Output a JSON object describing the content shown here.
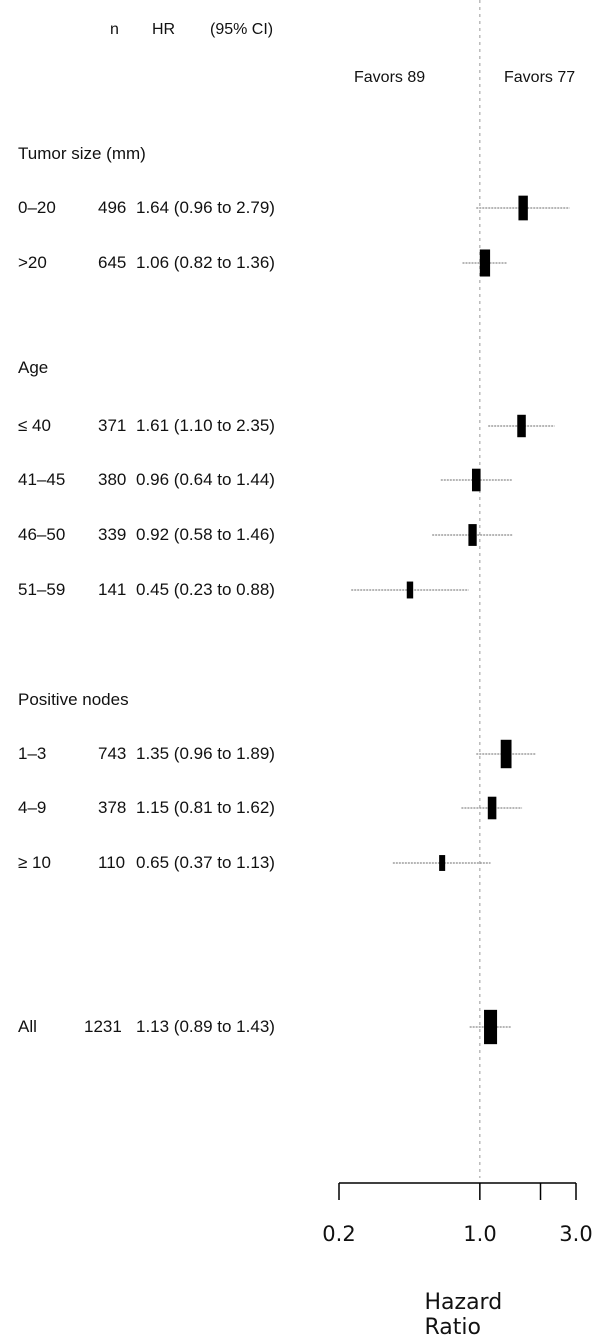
{
  "chart_data": {
    "type": "forest",
    "columns": {
      "n": "n",
      "hr": "HR",
      "ci": "(95% CI)"
    },
    "favors_left": "Favors 89",
    "favors_right": "Favors 77",
    "x_scale": "log",
    "xlim": [
      0.2,
      3.0
    ],
    "x_ticks": [
      {
        "value": 0.2,
        "label": "0.2"
      },
      {
        "value": 1.0,
        "label": "1.0"
      },
      {
        "value": 2.0,
        "label": ""
      },
      {
        "value": 3.0,
        "label": "3.0"
      }
    ],
    "xlabel": "Hazard Ratio",
    "reference_line": 1.0,
    "sections": [
      {
        "title": "Tumor size (mm)",
        "rows": [
          {
            "label": "0–20",
            "n": "496",
            "hr": 1.64,
            "lo": 0.96,
            "hi": 2.79,
            "ci_text": "1.64 (0.96 to 2.79)"
          },
          {
            "label": ">20",
            "n": "645",
            "hr": 1.06,
            "lo": 0.82,
            "hi": 1.36,
            "ci_text": "1.06 (0.82 to 1.36)"
          }
        ]
      },
      {
        "title": "Age",
        "rows": [
          {
            "label": "≤ 40",
            "n": "371",
            "hr": 1.61,
            "lo": 1.1,
            "hi": 2.35,
            "ci_text": "1.61 (1.10 to 2.35)"
          },
          {
            "label": "41–45",
            "n": "380",
            "hr": 0.96,
            "lo": 0.64,
            "hi": 1.44,
            "ci_text": "0.96 (0.64 to 1.44)"
          },
          {
            "label": "46–50",
            "n": "339",
            "hr": 0.92,
            "lo": 0.58,
            "hi": 1.46,
            "ci_text": "0.92 (0.58 to 1.46)"
          },
          {
            "label": "51–59",
            "n": "141",
            "hr": 0.45,
            "lo": 0.23,
            "hi": 0.88,
            "ci_text": "0.45 (0.23 to 0.88)"
          }
        ]
      },
      {
        "title": "Positive nodes",
        "rows": [
          {
            "label": "1–3",
            "n": "743",
            "hr": 1.35,
            "lo": 0.96,
            "hi": 1.89,
            "ci_text": "1.35 (0.96 to 1.89)"
          },
          {
            "label": "4–9",
            "n": "378",
            "hr": 1.15,
            "lo": 0.81,
            "hi": 1.62,
            "ci_text": "1.15 (0.81 to 1.62)"
          },
          {
            "label": "≥ 10",
            "n": "110",
            "hr": 0.65,
            "lo": 0.37,
            "hi": 1.13,
            "ci_text": "0.65 (0.37 to 1.13)"
          }
        ]
      },
      {
        "title": "",
        "rows": [
          {
            "label": "All",
            "n": "1231",
            "hr": 1.13,
            "lo": 0.89,
            "hi": 1.43,
            "ci_text": "1.13 (0.89 to 1.43)"
          }
        ]
      }
    ]
  }
}
